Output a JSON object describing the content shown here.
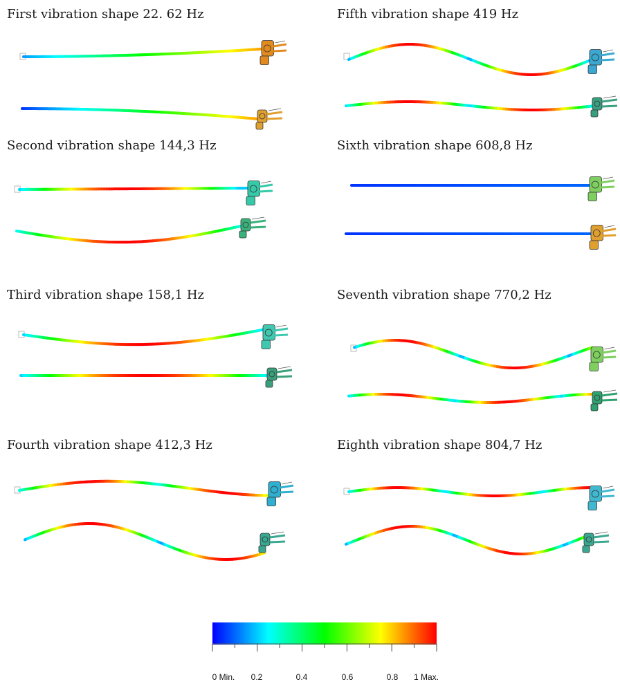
{
  "shapes": [
    {
      "title": "First vibration shape 22. 62 Hz"
    },
    {
      "title": "Second vibration shape 144,3 Hz"
    },
    {
      "title": "Third vibration shape 158,1 Hz"
    },
    {
      "title": "Fourth vibration shape 412,3 Hz"
    },
    {
      "title": "Fifth vibration shape 419 Hz"
    },
    {
      "title": "Sixth vibration shape 608,8 Hz"
    },
    {
      "title": "Seventh vibration shape 770,2 Hz"
    },
    {
      "title": "Eighth vibration shape 804,7 Hz"
    }
  ],
  "legend": {
    "colors": [
      "#0000ff",
      "#00ffff",
      "#00ff00",
      "#ffff00",
      "#ff0000"
    ],
    "ticks": [
      "0 Min.",
      "0.2",
      "0.4",
      "0.6",
      "0.8",
      "1 Max."
    ]
  }
}
